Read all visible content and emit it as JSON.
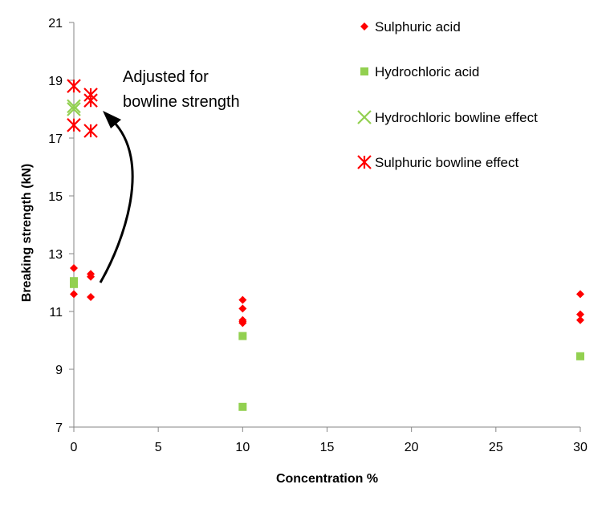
{
  "chart_data": {
    "type": "scatter",
    "title": "",
    "xlabel": "Concentration %",
    "ylabel": "Breaking strength (kN)",
    "xlim": [
      0,
      30
    ],
    "ylim": [
      7,
      21
    ],
    "xticks": [
      "0",
      "5",
      "10",
      "15",
      "20",
      "25",
      "30"
    ],
    "yticks": [
      "7",
      "9",
      "11",
      "13",
      "15",
      "17",
      "19",
      "21"
    ],
    "grid": false,
    "legend_position": "top-right",
    "series": [
      {
        "name": "Sulphuric acid",
        "marker": "diamond",
        "color": "#ff0000",
        "x": [
          0,
          0,
          1,
          1,
          1,
          10,
          10,
          10,
          10,
          10,
          30,
          30,
          30
        ],
        "y": [
          12.5,
          11.6,
          12.3,
          12.2,
          11.5,
          11.4,
          11.1,
          10.7,
          10.6,
          10.65,
          11.6,
          10.9,
          10.7
        ]
      },
      {
        "name": "Hydrochloric acid",
        "marker": "square",
        "color": "#92d050",
        "x": [
          0,
          0,
          10,
          10,
          30
        ],
        "y": [
          12.05,
          11.95,
          10.15,
          7.7,
          9.45
        ]
      },
      {
        "name": "Hydrochloric bowline effect",
        "marker": "x",
        "color": "#92d050",
        "x": [
          0,
          0
        ],
        "y": [
          18.1,
          18.0
        ]
      },
      {
        "name": "Sulphuric bowline effect",
        "marker": "star",
        "color": "#ff0000",
        "x": [
          0,
          0,
          1,
          1,
          1
        ],
        "y": [
          18.8,
          17.45,
          18.5,
          18.3,
          17.25
        ]
      }
    ],
    "annotation": {
      "lines": [
        "Adjusted for",
        "bowline strength"
      ],
      "arrow": "curved, pointing up toward bowline-effect points"
    }
  }
}
